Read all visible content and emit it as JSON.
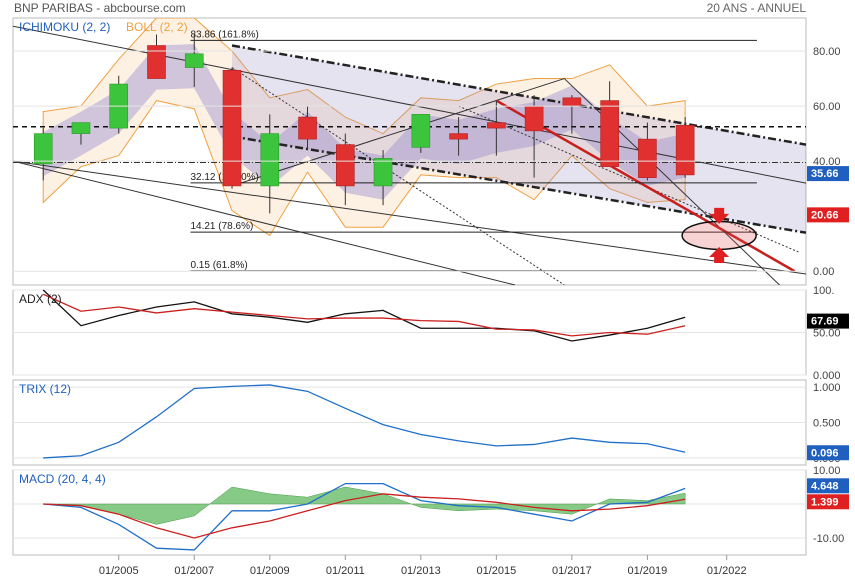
{
  "header": {
    "title": "BNP PARIBAS - abcbourse.com",
    "period": "20 ANS - ANNUEL"
  },
  "x_axis": {
    "ticks": [
      "01/2005",
      "01/2007",
      "01/2009",
      "01/2011",
      "01/2013",
      "01/2015",
      "01/2017",
      "01/2019",
      "01/2022"
    ]
  },
  "chart_data": [
    {
      "type": "candlestick",
      "title": "ICHIMOKU (2, 2)",
      "overlay_label": "BOLL (2, 2)",
      "ylim": [
        -5,
        92
      ],
      "yticks": [
        "80.00",
        "60.00",
        "40.00",
        "0.00"
      ],
      "ytick_values": [
        80,
        60,
        40,
        0
      ],
      "x": [
        2003,
        2004,
        2005,
        2006,
        2007,
        2008,
        2009,
        2010,
        2011,
        2012,
        2013,
        2014,
        2015,
        2016,
        2017,
        2018,
        2019,
        2020
      ],
      "open": [
        39,
        50,
        52,
        82,
        74,
        73,
        31,
        56,
        46,
        31,
        45,
        50,
        54,
        60,
        63,
        62,
        48,
        53
      ],
      "high": [
        52,
        54,
        71,
        86,
        86,
        74,
        57,
        60,
        50,
        44,
        57,
        56,
        62,
        64,
        64,
        69,
        54,
        56
      ],
      "low": [
        33,
        46,
        50,
        70,
        67,
        30,
        21,
        44,
        24,
        24,
        43,
        42,
        42,
        34,
        50,
        38,
        33,
        34
      ],
      "close": [
        50,
        54,
        68,
        70,
        79,
        31,
        50,
        48,
        31,
        41,
        57,
        48,
        52,
        51,
        60,
        38,
        34,
        35
      ],
      "fib_levels": [
        {
          "value": 83.86,
          "label": "83.86  (161.8%)"
        },
        {
          "value": 32.12,
          "label": "32.12  (100.0%)"
        },
        {
          "value": 14.21,
          "label": "14.21  (78.6%)"
        },
        {
          "value": 0.15,
          "label": "0.15  (61.8%)"
        }
      ],
      "price_tags": [
        {
          "value": "35.66",
          "color": "#1f5fbf"
        },
        {
          "value": "20.66",
          "color": "#e02020"
        }
      ],
      "colors": {
        "up": "#3cc43c",
        "down": "#e03030",
        "ichimoku": "#7a72c8",
        "bollinger": "#f0a040"
      }
    },
    {
      "type": "line",
      "title": "ADX (2)",
      "ylim": [
        0,
        100
      ],
      "yticks": [
        "100.",
        "50.00",
        "0.000"
      ],
      "ytick_values": [
        100,
        50,
        0
      ],
      "x": [
        2003,
        2004,
        2005,
        2006,
        2007,
        2008,
        2009,
        2010,
        2011,
        2012,
        2013,
        2014,
        2015,
        2016,
        2017,
        2018,
        2019,
        2020
      ],
      "series": [
        {
          "color": "#111111",
          "values": [
            100,
            58,
            70,
            80,
            86,
            72,
            68,
            62,
            72,
            76,
            55,
            55,
            55,
            52,
            40,
            47,
            55,
            68
          ]
        },
        {
          "color": "#cc1f1f",
          "values": [
            95,
            75,
            80,
            73,
            78,
            74,
            70,
            66,
            67,
            67,
            64,
            63,
            54,
            53,
            46,
            50,
            48,
            58
          ]
        }
      ],
      "price_tag": {
        "value": "67.69",
        "color": "#000000"
      }
    },
    {
      "type": "line",
      "title": "TRIX (12)",
      "ylim": [
        -0.1,
        1.1
      ],
      "yticks": [
        "1.000",
        "0.500",
        "0.000"
      ],
      "ytick_values": [
        1.0,
        0.5,
        0.0
      ],
      "x": [
        2003,
        2004,
        2005,
        2006,
        2007,
        2008,
        2009,
        2010,
        2011,
        2012,
        2013,
        2014,
        2015,
        2016,
        2017,
        2018,
        2019,
        2020
      ],
      "series": [
        {
          "color": "#1f6fc8",
          "values": [
            0.0,
            0.03,
            0.22,
            0.58,
            0.98,
            1.01,
            1.03,
            0.94,
            0.7,
            0.47,
            0.33,
            0.24,
            0.17,
            0.19,
            0.28,
            0.22,
            0.2,
            0.08
          ]
        }
      ],
      "price_tag": {
        "value": "0.096",
        "color": "#1f5fbf"
      }
    },
    {
      "type": "line",
      "title": "MACD (20, 4, 4)",
      "ylim": [
        -15,
        10
      ],
      "yticks": [
        "10.00",
        "0.000",
        "-10.00"
      ],
      "ytick_values": [
        10,
        0,
        -10
      ],
      "x": [
        2003,
        2004,
        2005,
        2006,
        2007,
        2008,
        2009,
        2010,
        2011,
        2012,
        2013,
        2014,
        2015,
        2016,
        2017,
        2018,
        2019,
        2020
      ],
      "series": [
        {
          "color": "#1f6fc8",
          "values": [
            0,
            -1,
            -6,
            -13,
            -13.5,
            -2,
            -2,
            0,
            6,
            6,
            1,
            -0.5,
            -1,
            -3,
            -5,
            0,
            0.5,
            4.6
          ]
        },
        {
          "color": "#cc1f1f",
          "values": [
            0,
            -0.5,
            -3,
            -7,
            -10,
            -7,
            -5,
            -2,
            1,
            3,
            2,
            1.5,
            0.5,
            -1,
            -2,
            -1.5,
            -0.5,
            1.4
          ]
        }
      ],
      "histogram": {
        "color": "#5fb85f",
        "values": [
          0,
          -0.5,
          -3,
          -6,
          -3.5,
          5,
          3,
          2,
          5,
          3,
          -1,
          -2,
          -1.5,
          -2,
          -3,
          1.5,
          1,
          3.2
        ]
      },
      "price_tags": [
        {
          "value": "4.648",
          "color": "#1f5fbf"
        },
        {
          "value": "1.399",
          "color": "#e02020"
        }
      ]
    }
  ]
}
